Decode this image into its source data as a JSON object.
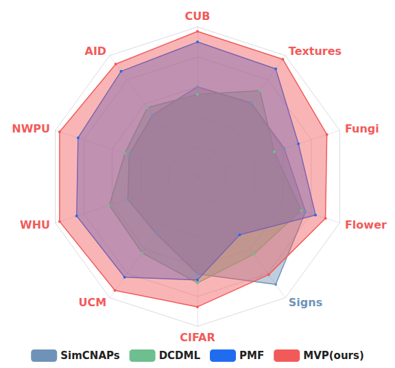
{
  "chart_data": {
    "type": "radar",
    "categories": [
      "CUB",
      "AID",
      "NWPU",
      "WHU",
      "UCM",
      "CIFAR",
      "Signs",
      "Flower",
      "Fungi",
      "Textures"
    ],
    "ylim": [
      0,
      100
    ],
    "yticks": [
      0,
      20,
      40,
      60,
      80,
      100
    ],
    "grid": true,
    "tick_labels": false,
    "legend": "bottom",
    "series": [
      {
        "name": "SimCNAPs",
        "color": "#6f93b8",
        "values": [
          60,
          51,
          48,
          49,
          47,
          65,
          89,
          76,
          61,
          61
        ]
      },
      {
        "name": "DCDML",
        "color": "#6dbf8f",
        "values": [
          55,
          57,
          51,
          62,
          63,
          71,
          64,
          73,
          54,
          71
        ]
      },
      {
        "name": "PMF",
        "color": "#1f6cf0",
        "values": [
          90,
          87,
          84,
          85,
          83,
          69,
          48,
          83,
          71,
          89
        ]
      },
      {
        "name": "MVP(ours)",
        "color": "#f25a5a",
        "values": [
          97,
          93,
          97,
          97,
          94,
          87,
          81,
          90,
          91,
          97
        ]
      }
    ]
  }
}
